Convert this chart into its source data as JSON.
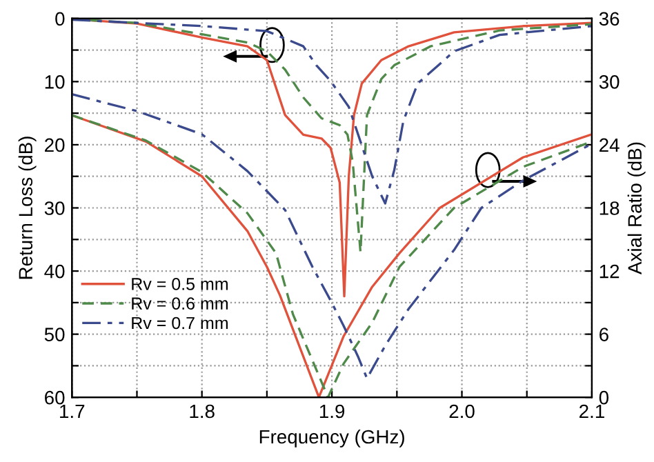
{
  "chart_data": {
    "type": "line",
    "xlabel": "Frequency (GHz)",
    "ylabel": "Return Loss (dB)",
    "y2label": "Axial Ratio (dB)",
    "xlim": [
      1.7,
      2.1
    ],
    "xticks": [
      1.7,
      {
        "value": 1.75,
        "label": null
      },
      1.8,
      {
        "value": 1.85,
        "label": null
      },
      1.9,
      {
        "value": 1.95,
        "label": null
      },
      {
        "value": 2.0,
        "label": "2.0"
      },
      {
        "value": 2.05,
        "label": null
      },
      2.1
    ],
    "ylim": [
      60,
      0
    ],
    "yticks": [
      0,
      {
        "value": 5,
        "label": null
      },
      10,
      {
        "value": 15,
        "label": null
      },
      20,
      {
        "value": 25,
        "label": null
      },
      30,
      {
        "value": 35,
        "label": null
      },
      40,
      {
        "value": 45,
        "label": null
      },
      50,
      {
        "value": 55,
        "label": null
      },
      60
    ],
    "y2lim": [
      0,
      36
    ],
    "y2ticks": [
      0,
      {
        "value": 3,
        "label": null
      },
      6,
      {
        "value": 9,
        "label": null
      },
      12,
      {
        "value": 15,
        "label": null
      },
      18,
      {
        "value": 21,
        "label": null
      },
      24,
      {
        "value": 27,
        "label": null
      },
      30,
      {
        "value": 33,
        "label": null
      },
      36
    ],
    "grid": true,
    "legend": "bottom left",
    "marker": "none",
    "series": [
      {
        "name": "Rv = 0.5 mm",
        "color": "#e0523c",
        "line_style": "solid",
        "x": [
          1.7,
          1.75,
          1.8,
          1.835,
          1.85,
          1.864,
          1.878,
          1.892,
          1.899,
          1.906,
          1.9095,
          1.913,
          1.917,
          1.923,
          1.938,
          1.959,
          1.994,
          2.047,
          2.1
        ],
        "values": [
          0.1,
          0.8,
          3.0,
          4.4,
          6.6,
          15.3,
          18.4,
          19.0,
          20.5,
          26.0,
          44.0,
          25.0,
          15.3,
          10.3,
          6.6,
          4.4,
          2.2,
          1.2,
          0.7
        ]
      },
      {
        "name": "Rv = 0.6 mm",
        "color": "#4f8a4a",
        "line_style": "dashed",
        "x": [
          1.7,
          1.75,
          1.8,
          1.835,
          1.85,
          1.864,
          1.878,
          1.892,
          1.906,
          1.912,
          1.916,
          1.922,
          1.927,
          1.938,
          1.948,
          1.976,
          2.029,
          2.1
        ],
        "values": [
          0.1,
          0.7,
          2.5,
          3.8,
          5.2,
          8.1,
          12.5,
          15.8,
          16.9,
          18.4,
          22.7,
          37.0,
          15.3,
          9.6,
          7.4,
          4.4,
          1.9,
          0.9
        ]
      },
      {
        "name": "Rv = 0.7 mm",
        "color": "#3b4a8c",
        "line_style": "dashdot",
        "x": [
          1.7,
          1.8,
          1.85,
          1.878,
          1.888,
          1.899,
          1.913,
          1.931,
          1.941,
          1.948,
          1.955,
          1.966,
          1.994,
          2.029,
          2.1
        ],
        "values": [
          0.2,
          1.2,
          2.0,
          4.4,
          7.4,
          9.9,
          14.0,
          25.0,
          29.3,
          24.0,
          16.2,
          10.3,
          5.2,
          2.6,
          1.2
        ]
      },
      {
        "color": "#e0523c",
        "line_style": "solid",
        "axis": "y2",
        "x": [
          1.7,
          1.757,
          1.8,
          1.835,
          1.85,
          1.86,
          1.89,
          1.909,
          1.931,
          1.952,
          1.983,
          2.047,
          2.1
        ],
        "values": [
          26.8,
          24.3,
          21.0,
          15.8,
          12.4,
          9.7,
          0.0,
          5.8,
          10.5,
          13.7,
          18.0,
          22.8,
          25.0
        ]
      },
      {
        "color": "#4f8a4a",
        "line_style": "dashed",
        "axis": "y2",
        "x": [
          1.7,
          1.757,
          1.8,
          1.835,
          1.857,
          1.87,
          1.897,
          1.909,
          1.931,
          1.952,
          1.994,
          2.047,
          2.1
        ],
        "values": [
          26.8,
          24.4,
          21.4,
          17.5,
          13.7,
          7.9,
          0.0,
          3.2,
          7.1,
          12.4,
          18.0,
          21.9,
          24.3
        ]
      },
      {
        "color": "#3b4a8c",
        "line_style": "dashdot",
        "axis": "y2",
        "x": [
          1.7,
          1.75,
          1.8,
          1.835,
          1.864,
          1.885,
          1.899,
          1.909,
          1.92,
          1.927,
          1.941,
          1.959,
          1.994,
          2.015,
          2.047,
          2.1
        ],
        "values": [
          28.8,
          27.2,
          25.0,
          21.5,
          17.8,
          12.4,
          9.2,
          6.8,
          3.9,
          1.8,
          4.9,
          8.4,
          14.0,
          18.0,
          20.6,
          24.1
        ]
      }
    ]
  }
}
